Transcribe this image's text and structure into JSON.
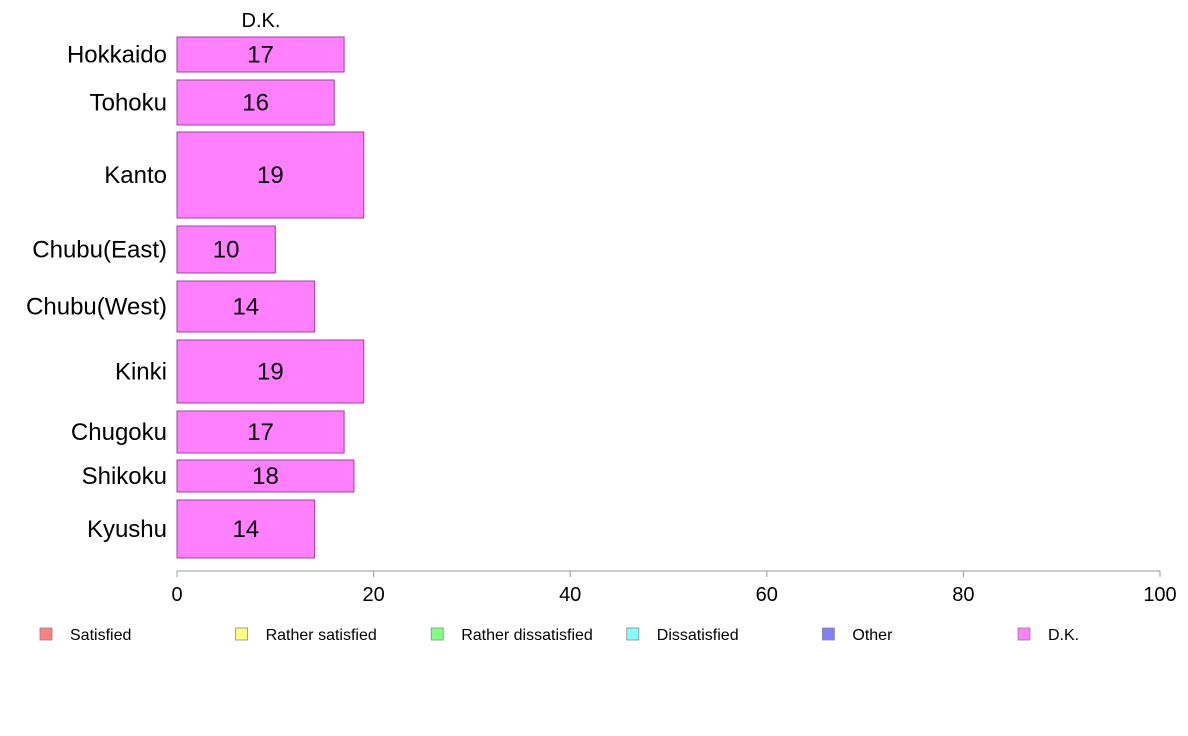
{
  "chart_data": {
    "type": "bar",
    "orientation": "horizontal",
    "column_title": "D.K.",
    "categories": [
      "Hokkaido",
      "Tohoku",
      "Kanto",
      "Chubu(East)",
      "Chubu(West)",
      "Kinki",
      "Chugoku",
      "Shikoku",
      "Kyushu"
    ],
    "series": [
      {
        "name": "D.K.",
        "values": [
          17,
          16,
          19,
          10,
          14,
          19,
          17,
          18,
          14
        ],
        "color": "#ff80ff"
      }
    ],
    "xlim": [
      0,
      100
    ],
    "xticks": [
      0,
      20,
      40,
      60,
      80,
      100
    ],
    "grid": false,
    "legend_position": "bottom",
    "legend": [
      {
        "label": "Satisfied",
        "color": "#ff8080"
      },
      {
        "label": "Rather satisfied",
        "color": "#ffff80"
      },
      {
        "label": "Rather dissatisfied",
        "color": "#80ff80"
      },
      {
        "label": "Dissatisfied",
        "color": "#80ffff"
      },
      {
        "label": "Other",
        "color": "#8080ff"
      },
      {
        "label": "D.K.",
        "color": "#ff80ff"
      }
    ]
  }
}
